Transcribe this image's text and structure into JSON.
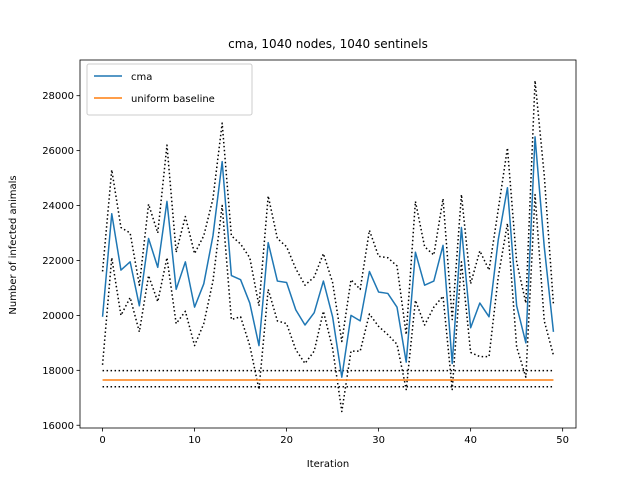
{
  "chart_data": {
    "type": "line",
    "title": "cma, 1040 nodes, 1040 sentinels",
    "xlabel": "Iteration",
    "ylabel": "Number of infected animals",
    "xlim": [
      -2.45,
      51.45
    ],
    "ylim": [
      15900,
      29300
    ],
    "x_ticks": [
      0,
      10,
      20,
      30,
      40,
      50
    ],
    "y_ticks": [
      16000,
      18000,
      20000,
      22000,
      24000,
      26000,
      28000
    ],
    "x_tick_labels": [
      "0",
      "10",
      "20",
      "30",
      "40",
      "50"
    ],
    "y_tick_labels": [
      "16000",
      "18000",
      "20000",
      "22000",
      "24000",
      "26000",
      "28000"
    ],
    "grid": false,
    "legend_position": "top-left",
    "x": [
      0,
      1,
      2,
      3,
      4,
      5,
      6,
      7,
      8,
      9,
      10,
      11,
      12,
      13,
      14,
      15,
      16,
      17,
      18,
      19,
      20,
      21,
      22,
      23,
      24,
      25,
      26,
      27,
      28,
      29,
      30,
      31,
      32,
      33,
      34,
      35,
      36,
      37,
      38,
      39,
      40,
      41,
      42,
      43,
      44,
      45,
      46,
      47,
      48,
      49
    ],
    "series": [
      {
        "name": "cma",
        "color": "#1f77b4",
        "style": "solid",
        "values": [
          19950,
          23700,
          21650,
          21950,
          20350,
          22800,
          21750,
          24150,
          20950,
          21950,
          20300,
          21150,
          22900,
          25600,
          21450,
          21300,
          20450,
          18900,
          22650,
          21250,
          21200,
          20200,
          19650,
          20100,
          21250,
          19950,
          17750,
          20000,
          19800,
          21600,
          20850,
          20800,
          20300,
          18300,
          22300,
          21100,
          21250,
          22550,
          18250,
          23200,
          19550,
          20450,
          19950,
          22750,
          24650,
          20350,
          19000,
          26500,
          22500,
          19400
        ]
      },
      {
        "name": "uniform baseline",
        "color": "#ff7f0e",
        "style": "solid",
        "values": [
          17650,
          17650,
          17650,
          17650,
          17650,
          17650,
          17650,
          17650,
          17650,
          17650,
          17650,
          17650,
          17650,
          17650,
          17650,
          17650,
          17650,
          17650,
          17650,
          17650,
          17650,
          17650,
          17650,
          17650,
          17650,
          17650,
          17650,
          17650,
          17650,
          17650,
          17650,
          17650,
          17650,
          17650,
          17650,
          17650,
          17650,
          17650,
          17650,
          17650,
          17650,
          17650,
          17650,
          17650,
          17650,
          17650,
          17650,
          17650,
          17650,
          17650
        ]
      },
      {
        "color": "#000000",
        "style": "dotted",
        "values": [
          21600,
          25300,
          23200,
          23000,
          21100,
          24050,
          23000,
          26200,
          22300,
          23600,
          22250,
          22900,
          24250,
          27000,
          22900,
          22600,
          22100,
          20350,
          24350,
          22800,
          22500,
          21700,
          21100,
          21400,
          22250,
          21200,
          19050,
          21300,
          20950,
          23100,
          22150,
          22100,
          21800,
          19300,
          24150,
          22500,
          22200,
          24250,
          19850,
          24400,
          21150,
          22350,
          21650,
          23850,
          26100,
          21950,
          20450,
          28550,
          25100,
          20400
        ]
      },
      {
        "color": "#000000",
        "style": "dotted",
        "values": [
          18200,
          22100,
          20000,
          20650,
          19400,
          21450,
          20500,
          22100,
          19700,
          20150,
          18900,
          19700,
          21250,
          24000,
          19850,
          19950,
          18900,
          17300,
          20950,
          19800,
          19700,
          18750,
          18250,
          18700,
          20150,
          18800,
          16500,
          18700,
          18700,
          20050,
          19600,
          19300,
          18950,
          17300,
          20550,
          19650,
          20300,
          20700,
          17300,
          21950,
          18650,
          18500,
          18500,
          21400,
          23350,
          18850,
          17750,
          24400,
          19800,
          18550
        ]
      },
      {
        "color": "#000000",
        "style": "dotted",
        "values": [
          17990,
          17990,
          17990,
          17990,
          17990,
          17990,
          17990,
          17990,
          17990,
          17990,
          17990,
          17990,
          17990,
          17990,
          17990,
          17990,
          17990,
          17990,
          17990,
          17990,
          17990,
          17990,
          17990,
          17990,
          17990,
          17990,
          17990,
          17990,
          17990,
          17990,
          17990,
          17990,
          17990,
          17990,
          17990,
          17990,
          17990,
          17990,
          17990,
          17990,
          17990,
          17990,
          17990,
          17990,
          17990,
          17990,
          17990,
          17990,
          17990,
          17990
        ]
      },
      {
        "color": "#000000",
        "style": "dotted",
        "values": [
          17400,
          17400,
          17400,
          17400,
          17400,
          17400,
          17400,
          17400,
          17400,
          17400,
          17400,
          17400,
          17400,
          17400,
          17400,
          17400,
          17400,
          17400,
          17400,
          17400,
          17400,
          17400,
          17400,
          17400,
          17400,
          17400,
          17400,
          17400,
          17400,
          17400,
          17400,
          17400,
          17400,
          17400,
          17400,
          17400,
          17400,
          17400,
          17400,
          17400,
          17400,
          17400,
          17400,
          17400,
          17400,
          17400,
          17400,
          17400,
          17400,
          17400
        ]
      }
    ],
    "legend": [
      "cma",
      "uniform baseline"
    ]
  }
}
